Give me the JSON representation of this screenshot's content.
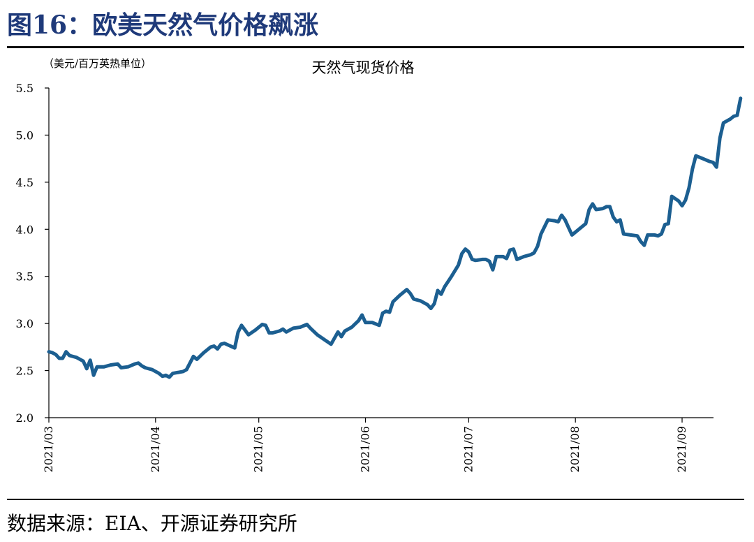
{
  "figure": {
    "title": "图16：欧美天然气价格飙涨",
    "source": "数据来源：EIA、开源证券研究所"
  },
  "colors": {
    "line": "#1c5f91",
    "axis": "#000000",
    "title": "#1f3a7a"
  },
  "chart_data": {
    "type": "line",
    "title": "天然气现货价格",
    "ylabel": "（美元/百万英热单位）",
    "xlabel": "",
    "ylim": [
      2.0,
      5.5
    ],
    "yticks": [
      "2.0",
      "2.5",
      "3.0",
      "3.5",
      "4.0",
      "4.5",
      "5.0",
      "5.5"
    ],
    "xticks": [
      "2021/03",
      "2021/04",
      "2021/05",
      "2021/06",
      "2021/07",
      "2021/08",
      "2021/09"
    ],
    "grid": false,
    "series": [
      {
        "values": [
          [
            "2021-03-01",
            2.7
          ],
          [
            "2021-03-02",
            2.69
          ],
          [
            "2021-03-03",
            2.67
          ],
          [
            "2021-03-04",
            2.63
          ],
          [
            "2021-03-05",
            2.63
          ],
          [
            "2021-03-06",
            2.7
          ],
          [
            "2021-03-07",
            2.66
          ],
          [
            "2021-03-09",
            2.64
          ],
          [
            "2021-03-11",
            2.6
          ],
          [
            "2021-03-12",
            2.52
          ],
          [
            "2021-03-13",
            2.61
          ],
          [
            "2021-03-14",
            2.45
          ],
          [
            "2021-03-15",
            2.54
          ],
          [
            "2021-03-17",
            2.54
          ],
          [
            "2021-03-19",
            2.56
          ],
          [
            "2021-03-21",
            2.57
          ],
          [
            "2021-03-22",
            2.53
          ],
          [
            "2021-03-24",
            2.54
          ],
          [
            "2021-03-26",
            2.57
          ],
          [
            "2021-03-27",
            2.58
          ],
          [
            "2021-03-28",
            2.55
          ],
          [
            "2021-03-29",
            2.53
          ],
          [
            "2021-03-31",
            2.51
          ],
          [
            "2021-04-02",
            2.47
          ],
          [
            "2021-04-03",
            2.44
          ],
          [
            "2021-04-04",
            2.45
          ],
          [
            "2021-04-05",
            2.43
          ],
          [
            "2021-04-06",
            2.47
          ],
          [
            "2021-04-09",
            2.49
          ],
          [
            "2021-04-10",
            2.51
          ],
          [
            "2021-04-12",
            2.65
          ],
          [
            "2021-04-13",
            2.62
          ],
          [
            "2021-04-15",
            2.69
          ],
          [
            "2021-04-17",
            2.75
          ],
          [
            "2021-04-18",
            2.76
          ],
          [
            "2021-04-19",
            2.73
          ],
          [
            "2021-04-20",
            2.78
          ],
          [
            "2021-04-21",
            2.79
          ],
          [
            "2021-04-24",
            2.74
          ],
          [
            "2021-04-25",
            2.91
          ],
          [
            "2021-04-26",
            2.98
          ],
          [
            "2021-04-27",
            2.93
          ],
          [
            "2021-04-28",
            2.88
          ],
          [
            "2021-04-30",
            2.93
          ],
          [
            "2021-05-02",
            2.99
          ],
          [
            "2021-05-03",
            2.98
          ],
          [
            "2021-05-04",
            2.9
          ],
          [
            "2021-05-05",
            2.9
          ],
          [
            "2021-05-07",
            2.92
          ],
          [
            "2021-05-08",
            2.94
          ],
          [
            "2021-05-09",
            2.91
          ],
          [
            "2021-05-11",
            2.95
          ],
          [
            "2021-05-13",
            2.96
          ],
          [
            "2021-05-15",
            2.99
          ],
          [
            "2021-05-16",
            2.95
          ],
          [
            "2021-05-18",
            2.88
          ],
          [
            "2021-05-20",
            2.83
          ],
          [
            "2021-05-22",
            2.78
          ],
          [
            "2021-05-24",
            2.91
          ],
          [
            "2021-05-25",
            2.86
          ],
          [
            "2021-05-26",
            2.92
          ],
          [
            "2021-05-28",
            2.96
          ],
          [
            "2021-05-30",
            3.03
          ],
          [
            "2021-05-31",
            3.09
          ],
          [
            "2021-06-01",
            3.01
          ],
          [
            "2021-06-03",
            3.01
          ],
          [
            "2021-06-05",
            2.98
          ],
          [
            "2021-06-06",
            3.11
          ],
          [
            "2021-06-07",
            3.13
          ],
          [
            "2021-06-08",
            3.12
          ],
          [
            "2021-06-09",
            3.23
          ],
          [
            "2021-06-11",
            3.3
          ],
          [
            "2021-06-13",
            3.36
          ],
          [
            "2021-06-14",
            3.32
          ],
          [
            "2021-06-15",
            3.26
          ],
          [
            "2021-06-17",
            3.24
          ],
          [
            "2021-06-19",
            3.2
          ],
          [
            "2021-06-20",
            3.16
          ],
          [
            "2021-06-21",
            3.21
          ],
          [
            "2021-06-22",
            3.35
          ],
          [
            "2021-06-23",
            3.31
          ],
          [
            "2021-06-24",
            3.39
          ],
          [
            "2021-06-26",
            3.5
          ],
          [
            "2021-06-28",
            3.62
          ],
          [
            "2021-06-29",
            3.74
          ],
          [
            "2021-06-30",
            3.79
          ],
          [
            "2021-07-01",
            3.76
          ],
          [
            "2021-07-02",
            3.68
          ],
          [
            "2021-07-03",
            3.67
          ],
          [
            "2021-07-05",
            3.68
          ],
          [
            "2021-07-06",
            3.68
          ],
          [
            "2021-07-07",
            3.66
          ],
          [
            "2021-07-08",
            3.57
          ],
          [
            "2021-07-09",
            3.71
          ],
          [
            "2021-07-11",
            3.71
          ],
          [
            "2021-07-12",
            3.69
          ],
          [
            "2021-07-13",
            3.78
          ],
          [
            "2021-07-14",
            3.79
          ],
          [
            "2021-07-15",
            3.68
          ],
          [
            "2021-07-17",
            3.71
          ],
          [
            "2021-07-19",
            3.73
          ],
          [
            "2021-07-20",
            3.75
          ],
          [
            "2021-07-21",
            3.82
          ],
          [
            "2021-07-22",
            3.95
          ],
          [
            "2021-07-24",
            4.1
          ],
          [
            "2021-07-26",
            4.09
          ],
          [
            "2021-07-27",
            4.08
          ],
          [
            "2021-07-28",
            4.15
          ],
          [
            "2021-07-29",
            4.1
          ],
          [
            "2021-07-30",
            4.02
          ],
          [
            "2021-07-31",
            3.94
          ],
          [
            "2021-08-02",
            4.0
          ],
          [
            "2021-08-04",
            4.06
          ],
          [
            "2021-08-05",
            4.21
          ],
          [
            "2021-08-06",
            4.27
          ],
          [
            "2021-08-07",
            4.21
          ],
          [
            "2021-08-09",
            4.22
          ],
          [
            "2021-08-10",
            4.24
          ],
          [
            "2021-08-11",
            4.24
          ],
          [
            "2021-08-12",
            4.13
          ],
          [
            "2021-08-13",
            4.08
          ],
          [
            "2021-08-14",
            4.1
          ],
          [
            "2021-08-15",
            3.95
          ],
          [
            "2021-08-17",
            3.94
          ],
          [
            "2021-08-19",
            3.93
          ],
          [
            "2021-08-20",
            3.87
          ],
          [
            "2021-08-21",
            3.83
          ],
          [
            "2021-08-22",
            3.94
          ],
          [
            "2021-08-24",
            3.94
          ],
          [
            "2021-08-25",
            3.93
          ],
          [
            "2021-08-26",
            3.95
          ],
          [
            "2021-08-27",
            4.05
          ],
          [
            "2021-08-28",
            4.06
          ],
          [
            "2021-08-29",
            4.35
          ],
          [
            "2021-08-31",
            4.3
          ],
          [
            "2021-09-01",
            4.25
          ],
          [
            "2021-09-02",
            4.31
          ],
          [
            "2021-09-03",
            4.44
          ],
          [
            "2021-09-04",
            4.64
          ],
          [
            "2021-09-05",
            4.78
          ],
          [
            "2021-09-07",
            4.75
          ],
          [
            "2021-09-09",
            4.72
          ],
          [
            "2021-09-10",
            4.71
          ],
          [
            "2021-09-11",
            4.66
          ],
          [
            "2021-09-12",
            4.97
          ],
          [
            "2021-09-13",
            5.13
          ],
          [
            "2021-09-15",
            5.17
          ],
          [
            "2021-09-16",
            5.2
          ],
          [
            "2021-09-17",
            5.21
          ],
          [
            "2021-09-18",
            5.39
          ]
        ]
      }
    ]
  }
}
